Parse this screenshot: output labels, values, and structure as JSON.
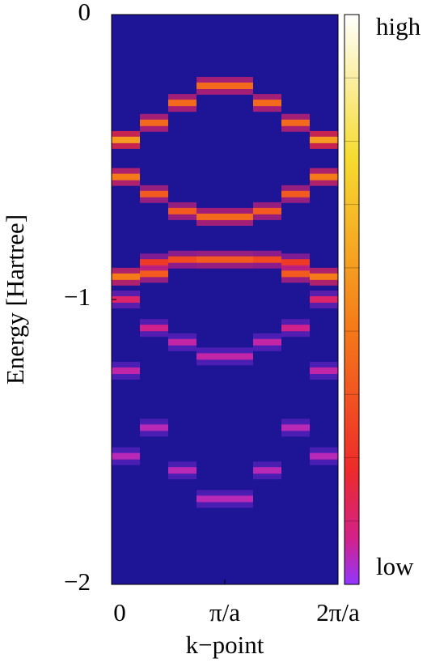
{
  "chart_data": {
    "type": "heatmap",
    "xlabel": "k−point",
    "ylabel": "Energy [Hartree]",
    "bins": [
      0,
      0.25,
      0.5,
      0.75,
      1,
      1.25,
      1.5,
      1.75,
      2
    ],
    "columns": [
      {
        "energies": [
          -0.44,
          -0.57,
          -0.92,
          -1.0,
          -1.25,
          -1.55
        ],
        "intensities": [
          0.55,
          0.45,
          0.45,
          0.12,
          0.06,
          0.05
        ]
      },
      {
        "energies": [
          -0.38,
          -0.63,
          -0.87,
          -0.91,
          -1.1,
          -1.45
        ],
        "intensities": [
          0.4,
          0.35,
          0.25,
          0.35,
          0.08,
          0.05
        ]
      },
      {
        "energies": [
          -0.31,
          -0.69,
          -0.86,
          -1.15,
          -1.6
        ],
        "intensities": [
          0.4,
          0.35,
          0.3,
          0.06,
          0.05
        ]
      },
      {
        "energies": [
          -0.25,
          -0.71,
          -0.86,
          -1.2,
          -1.7
        ],
        "intensities": [
          0.4,
          0.4,
          0.35,
          0.06,
          0.05
        ]
      },
      {
        "energies": [
          -0.25,
          -0.71,
          -0.86,
          -1.2,
          -1.7
        ],
        "intensities": [
          0.4,
          0.4,
          0.35,
          0.06,
          0.05
        ]
      },
      {
        "energies": [
          -0.31,
          -0.69,
          -0.86,
          -1.15,
          -1.6
        ],
        "intensities": [
          0.4,
          0.35,
          0.3,
          0.06,
          0.05
        ]
      },
      {
        "energies": [
          -0.38,
          -0.63,
          -0.87,
          -0.91,
          -1.1,
          -1.45
        ],
        "intensities": [
          0.4,
          0.35,
          0.25,
          0.35,
          0.08,
          0.05
        ]
      },
      {
        "energies": [
          -0.44,
          -0.57,
          -0.92,
          -1.0,
          -1.25,
          -1.55
        ],
        "intensities": [
          0.55,
          0.45,
          0.45,
          0.12,
          0.06,
          0.05
        ]
      }
    ],
    "background": "#1e1496",
    "clim": [
      0,
      1
    ],
    "colorbar_high": "high",
    "colorbar_low": "low",
    "xlim": [
      0,
      2
    ],
    "xticks": [
      0,
      {
        "value": 1,
        "label": "π/a"
      },
      {
        "value": 2,
        "label": "2π/a"
      }
    ],
    "ylim": [
      -2,
      0
    ],
    "yticks": [
      0,
      {
        "value": -1,
        "label": "−1"
      },
      {
        "value": -2,
        "label": "−2"
      }
    ],
    "grid": false
  }
}
